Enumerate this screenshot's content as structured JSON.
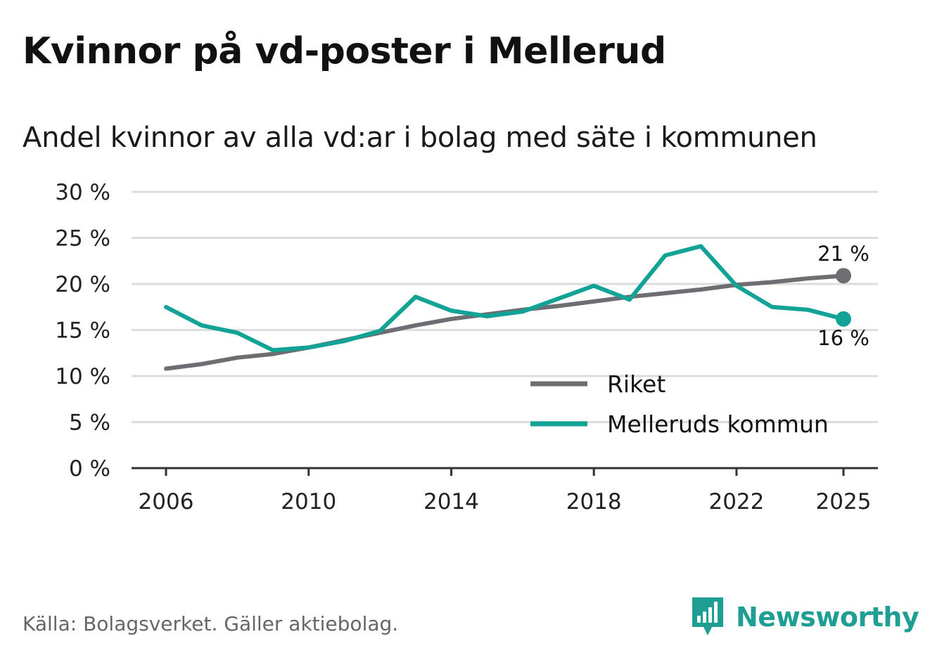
{
  "colors": {
    "riket": "#6e6d72",
    "kommun": "#12a396",
    "grid": "#dddddd",
    "axis": "#333333",
    "brand": "#1f9e94"
  },
  "brand": {
    "name": "Newsworthy",
    "icon": "newsworthy-bar-chart-icon"
  },
  "source": "Källa: Bolagsverket. Gäller aktiebolag.",
  "chart_data": {
    "type": "line",
    "title": "Kvinnor på vd-poster i Mellerud",
    "subtitle": "Andel kvinnor av alla vd:ar i bolag med säte i kommunen",
    "xlabel": "",
    "ylabel": "",
    "ylim": [
      0,
      30
    ],
    "xlim": [
      2006,
      2025
    ],
    "yticks": [
      0,
      5,
      10,
      15,
      20,
      25,
      30
    ],
    "ytick_labels": [
      "0 %",
      "5 %",
      "10 %",
      "15 %",
      "20 %",
      "25 %",
      "30 %"
    ],
    "xticks": [
      2006,
      2010,
      2014,
      2018,
      2022,
      2025
    ],
    "xtick_labels": [
      "2006",
      "2010",
      "2014",
      "2018",
      "2022",
      "2025"
    ],
    "grid": true,
    "legend_position": "bottom-right",
    "x": [
      2006,
      2007,
      2008,
      2009,
      2010,
      2011,
      2012,
      2013,
      2014,
      2015,
      2016,
      2017,
      2018,
      2019,
      2020,
      2021,
      2022,
      2023,
      2024,
      2025
    ],
    "series": [
      {
        "name": "Riket",
        "color": "#6e6d72",
        "values": [
          10.8,
          11.3,
          12.0,
          12.4,
          13.1,
          13.9,
          14.7,
          15.5,
          16.2,
          16.7,
          17.2,
          17.6,
          18.1,
          18.6,
          19.0,
          19.4,
          19.9,
          20.2,
          20.6,
          20.9
        ],
        "end_label": "21 %"
      },
      {
        "name": "Melleruds kommun",
        "color": "#12a396",
        "values": [
          17.5,
          15.5,
          14.7,
          12.8,
          13.1,
          13.8,
          14.9,
          18.6,
          17.1,
          16.5,
          17.0,
          18.4,
          19.8,
          18.3,
          23.1,
          24.1,
          19.8,
          17.5,
          17.2,
          16.2
        ],
        "end_label": "16 %"
      }
    ]
  }
}
